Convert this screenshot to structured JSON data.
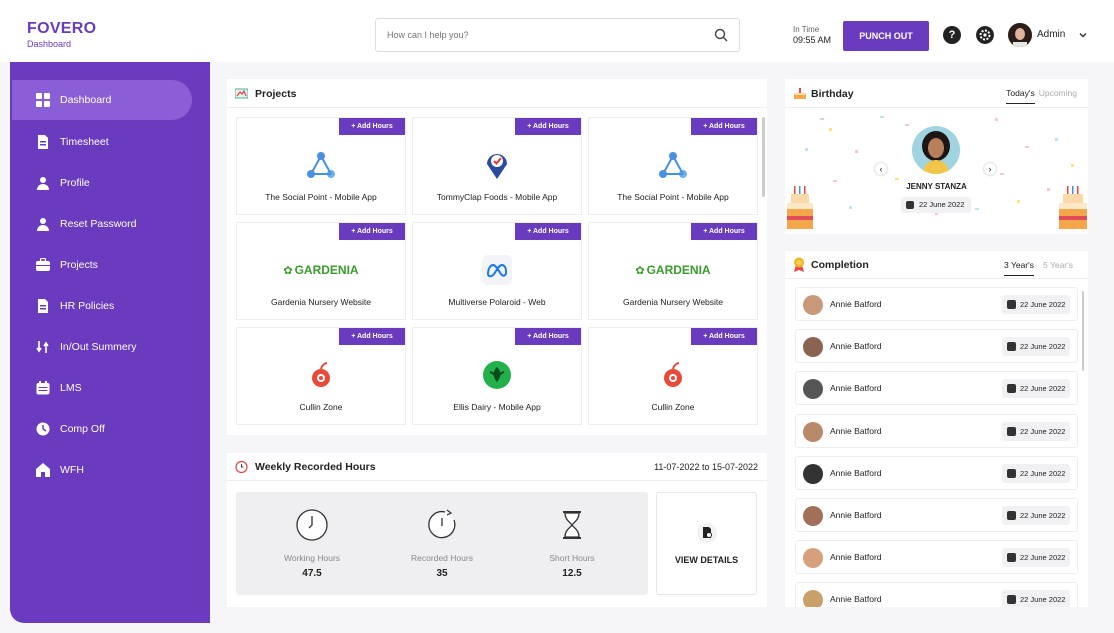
{
  "brand": {
    "name": "FOVERO",
    "subtitle": "Dashboard"
  },
  "search": {
    "placeholder": "How can I help you?"
  },
  "header": {
    "in_time_label": "In Time",
    "in_time_value": "09:55 AM",
    "punch_label": "PUNCH OUT",
    "help": "?",
    "user": "Admin"
  },
  "sidebar": {
    "items": [
      {
        "label": "Dashboard",
        "icon": "grid-icon"
      },
      {
        "label": "Timesheet",
        "icon": "document-icon"
      },
      {
        "label": "Profile",
        "icon": "user-icon"
      },
      {
        "label": "Reset Password",
        "icon": "user-icon"
      },
      {
        "label": "Projects",
        "icon": "briefcase-icon"
      },
      {
        "label": "HR Policies",
        "icon": "document-icon"
      },
      {
        "label": "In/Out Summery",
        "icon": "swap-icon"
      },
      {
        "label": "LMS",
        "icon": "calendar-icon"
      },
      {
        "label": "Comp Off",
        "icon": "clock-icon"
      },
      {
        "label": "WFH",
        "icon": "home-icon"
      }
    ]
  },
  "projects": {
    "title": "Projects",
    "add_label": "+ Add Hours",
    "items": [
      {
        "name": "The Social Point - Mobile App",
        "logo": "socialpoint"
      },
      {
        "name": "TommyClap Foods - Mobile App",
        "logo": "tommyclap"
      },
      {
        "name": "The Social Point - Mobile App",
        "logo": "socialpoint"
      },
      {
        "name": "Gardenia Nursery Website",
        "logo": "gardenia"
      },
      {
        "name": "Multiverse Polaroid - Web",
        "logo": "meta"
      },
      {
        "name": "Gardenia Nursery Website",
        "logo": "gardenia"
      },
      {
        "name": "Cullin Zone",
        "logo": "cullin"
      },
      {
        "name": "Ellis Dairy - Mobile App",
        "logo": "ellis"
      },
      {
        "name": "Cullin Zone",
        "logo": "cullin"
      }
    ],
    "gardenia_text": "GARDENIA"
  },
  "weekly": {
    "title": "Weekly Recorded Hours",
    "range": "11-07-2022 to 15-07-2022",
    "stats": [
      {
        "label": "Working Hours",
        "value": "47.5"
      },
      {
        "label": "Recorded Hours",
        "value": "35"
      },
      {
        "label": "Short Hours",
        "value": "12.5"
      }
    ],
    "details_label": "VIEW DETAILS"
  },
  "birthday": {
    "title": "Birthday",
    "tab_today": "Today's",
    "tab_upcoming": "Upcoming",
    "name": "JENNY STANZA",
    "date": "22 June 2022"
  },
  "completion": {
    "title": "Completion",
    "tab_active": "3 Year's",
    "tab_inactive": "5 Year's",
    "rows": [
      {
        "name": "Annie Batford",
        "date": "22 June 2022"
      },
      {
        "name": "Annie Batford",
        "date": "22 June 2022"
      },
      {
        "name": "Annie Batford",
        "date": "22 June 2022"
      },
      {
        "name": "Annie Batford",
        "date": "22 June 2022"
      },
      {
        "name": "Annie Batford",
        "date": "22 June 2022"
      },
      {
        "name": "Annie Batford",
        "date": "22 June 2022"
      },
      {
        "name": "Annie Batford",
        "date": "22 June 2022"
      },
      {
        "name": "Annie Batford",
        "date": "22 June 2022"
      }
    ]
  },
  "colors": {
    "brand": "#6a3bbf",
    "sidebar_active": "#8a5fd6",
    "gardenia": "#3a9a2a"
  }
}
